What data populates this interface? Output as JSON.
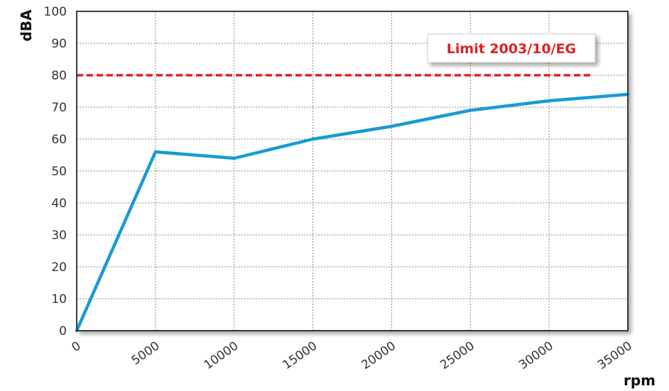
{
  "chart_data": {
    "type": "line",
    "xlabel": "rpm",
    "ylabel": "dBA",
    "xlim": [
      0,
      35000
    ],
    "ylim": [
      0,
      100
    ],
    "x_ticks": [
      0,
      5000,
      10000,
      15000,
      20000,
      25000,
      30000,
      35000
    ],
    "y_ticks": [
      0,
      10,
      20,
      30,
      40,
      50,
      60,
      70,
      80,
      90,
      100
    ],
    "grid": true,
    "series": [
      {
        "color": "#1a9ad6",
        "x": [
          0,
          5000,
          10000,
          15000,
          20000,
          25000,
          30000,
          35000
        ],
        "y": [
          0,
          56,
          54,
          60,
          64,
          69,
          72,
          74
        ]
      }
    ],
    "reference_line": {
      "y": 80,
      "color": "#e02020",
      "label": "Limit 2003/10/EG"
    }
  }
}
